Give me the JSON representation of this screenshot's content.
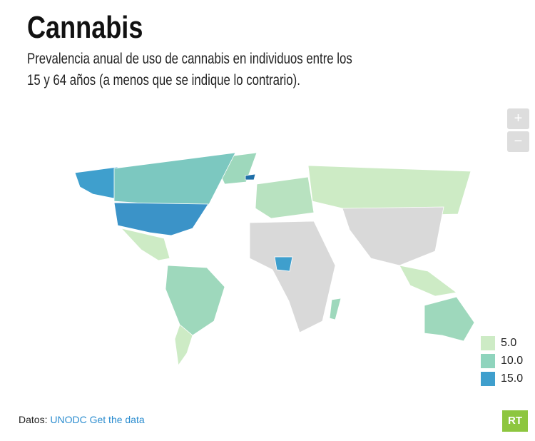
{
  "header": {
    "title": "Cannabis",
    "subtitle": "Prevalencia anual de uso de cannabis en individuos entre los 15 y 64 años (a menos que se indique lo contrario)."
  },
  "map": {
    "zoom_in": "+",
    "zoom_out": "−",
    "legend": [
      {
        "value": 5,
        "label": "5.0",
        "color": "#cdebc5"
      },
      {
        "value": 10,
        "label": "10.0",
        "color": "#8fd4bd"
      },
      {
        "value": 15,
        "label": "15.0",
        "color": "#3f9fcd"
      }
    ]
  },
  "footer": {
    "source_label": "Datos:",
    "source": "UNODC",
    "link": "Get the data",
    "logo": "RT"
  }
}
